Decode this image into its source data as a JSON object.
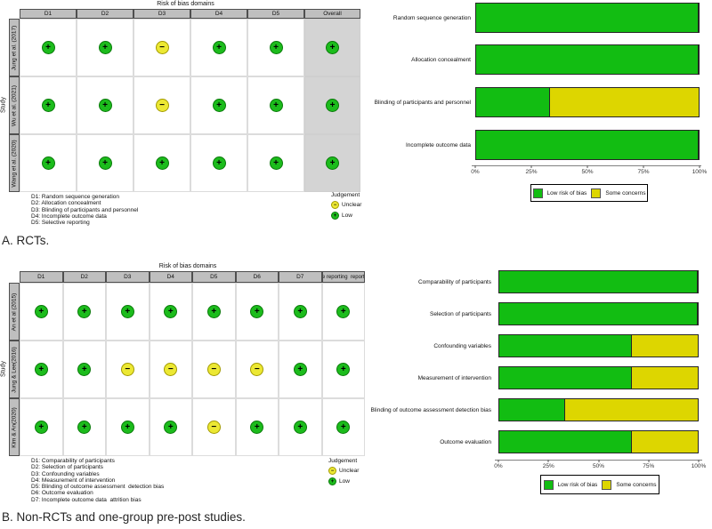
{
  "colors": {
    "low_circle": "#1cbc1c",
    "low_circle_border": "#0a7a0a",
    "unclear_circle": "#ece833",
    "unclear_circle_border": "#a39b00",
    "bar_green": "#12bd12",
    "bar_yellow": "#ddd600",
    "header_gray": "#bfbfbf",
    "overall_column_gray": "#d4d4d4"
  },
  "panelA": {
    "plot_title": "Risk of bias domains",
    "axis_label": "Study",
    "caption": "A. RCTs.",
    "domain_key": [
      "D1: Random sequence generation",
      "D2: Allocation concealment",
      "D3: Blinding of participants and personnel",
      "D4: Incomplete outcome data",
      "D5: Selective reporting"
    ],
    "judgement": {
      "title": "Judgement",
      "unclear": "Unclear",
      "low": "Low"
    }
  },
  "panelB": {
    "plot_title": "Risk of bias domains",
    "axis_label": "Study",
    "caption": "B. Non-RCTs and one-group pre-post studies.",
    "domain_key": [
      "D1: Comparability of participants",
      "D2: Selection of participants",
      "D3: Confounding variables",
      "D4: Measurement of intervention",
      "D5: Blinding of outcome assessment  detection bias",
      "D6: Outcome evaluation",
      "D7: Incomplete outcome data  attrition bias"
    ],
    "judgement": {
      "title": "Judgement",
      "unclear": "Unclear",
      "low": "Low"
    }
  },
  "chart_data": [
    {
      "type": "table",
      "panel": "A",
      "title": "Risk of bias domains",
      "columns": [
        "D1",
        "D2",
        "D3",
        "D4",
        "D5",
        "Overall"
      ],
      "rows": [
        "Jung et al. (2017)",
        "Wu et al. (2021)",
        "Wang et al. (2020)"
      ],
      "values": [
        [
          "low",
          "low",
          "unclear",
          "low",
          "low",
          "low"
        ],
        [
          "low",
          "low",
          "unclear",
          "low",
          "low",
          "low"
        ],
        [
          "low",
          "low",
          "low",
          "low",
          "low",
          "low"
        ]
      ]
    },
    {
      "type": "bar",
      "panel": "A",
      "orientation": "horizontal",
      "stacked": true,
      "categories": [
        "Random sequence generation",
        "Allocation concealment",
        "Blinding of participants and personnel",
        "Incomplete outcome data"
      ],
      "series": [
        {
          "name": "Low risk of bias",
          "color": "#12bd12",
          "values": [
            100,
            100,
            33.3,
            100
          ]
        },
        {
          "name": "Some concerns",
          "color": "#ddd600",
          "values": [
            0,
            0,
            66.7,
            0
          ]
        }
      ],
      "xlim": [
        0,
        100
      ],
      "x_ticks": [
        "0%",
        "25%",
        "50%",
        "75%",
        "100%"
      ],
      "legend_position": "bottom",
      "grid": false
    },
    {
      "type": "table",
      "panel": "B",
      "title": "Risk of bias domains",
      "columns": [
        "D1",
        "D2",
        "D3",
        "D4",
        "D5",
        "D6",
        "D7",
        "e reporting  report"
      ],
      "rows": [
        "An et al (2015)",
        "Jung & Lee(2016)",
        "Kim & An(2020)"
      ],
      "values": [
        [
          "low",
          "low",
          "low",
          "low",
          "low",
          "low",
          "low",
          "low"
        ],
        [
          "low",
          "low",
          "unclear",
          "unclear",
          "unclear",
          "unclear",
          "low",
          "low"
        ],
        [
          "low",
          "low",
          "low",
          "low",
          "unclear",
          "low",
          "low",
          "low"
        ]
      ]
    },
    {
      "type": "bar",
      "panel": "B",
      "orientation": "horizontal",
      "stacked": true,
      "categories": [
        "Comparability of participants",
        "Selection of participants",
        "Confounding variables",
        "Measurement of intervention",
        "Blinding of outcome assessment  detection bias",
        "Outcome evaluation"
      ],
      "series": [
        {
          "name": "Low risk of bias",
          "color": "#12bd12",
          "values": [
            100,
            100,
            66.7,
            66.7,
            33.3,
            66.7
          ]
        },
        {
          "name": "Some concerns",
          "color": "#ddd600",
          "values": [
            0,
            0,
            33.3,
            33.3,
            66.7,
            33.3
          ]
        }
      ],
      "xlim": [
        0,
        100
      ],
      "x_ticks": [
        "0%",
        "25%",
        "50%",
        "75%",
        "100%"
      ],
      "legend_position": "bottom",
      "grid": false
    }
  ]
}
